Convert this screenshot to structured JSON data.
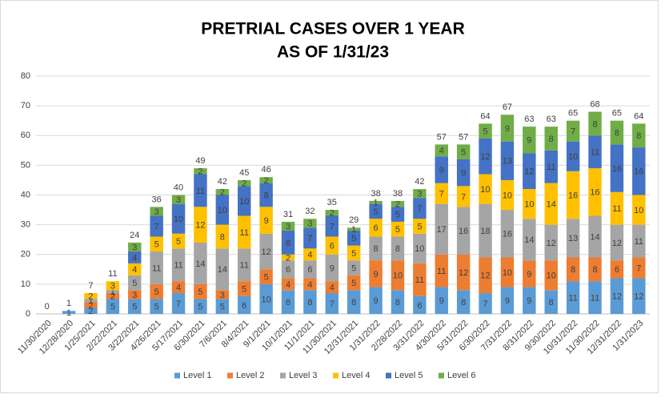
{
  "chart_data": {
    "type": "stacked_bar",
    "title": [
      "PRETRIAL CASES OVER 1 YEAR",
      "AS OF 1/31/23"
    ],
    "categories": [
      "11/30/2020",
      "12/28/2020",
      "1/25/2021",
      "2/22/2021",
      "3/22/2021",
      "4/26/2021",
      "5/17/2021",
      "6/30/2021",
      "7/6/2021",
      "8/4/2021",
      "9/1/2021",
      "10/1/2021",
      "11/1/2021",
      "11/30/2021",
      "12/31/2021",
      "1/31/2022",
      "2/28/2022",
      "3/31/2022",
      "4/30/2022",
      "5/31/2022",
      "6/30/2022",
      "7/31/2022",
      "8/31/2022",
      "9/30/2022",
      "10/31/2022",
      "11/30/2022",
      "12/31/2022",
      "1/31/2023"
    ],
    "series": [
      {
        "name": "Level 1",
        "color": "#5b9bd5",
        "values": [
          null,
          1,
          2,
          5,
          5,
          5,
          7,
          5,
          5,
          6,
          10,
          8,
          8,
          7,
          8,
          9,
          8,
          6,
          9,
          8,
          7,
          9,
          9,
          8,
          11,
          11,
          12,
          12
        ]
      },
      {
        "name": "Level 2",
        "color": "#ed7d31",
        "values": [
          null,
          null,
          2,
          2,
          3,
          5,
          4,
          5,
          3,
          5,
          5,
          4,
          4,
          4,
          5,
          9,
          10,
          11,
          11,
          12,
          12,
          10,
          9,
          10,
          8,
          8,
          6,
          7
        ]
      },
      {
        "name": "Level 3",
        "color": "#a5a5a5",
        "values": [
          null,
          null,
          1,
          1,
          5,
          11,
          11,
          14,
          14,
          11,
          12,
          6,
          6,
          9,
          5,
          8,
          8,
          10,
          17,
          16,
          18,
          16,
          14,
          12,
          13,
          14,
          12,
          11
        ]
      },
      {
        "name": "Level 4",
        "color": "#ffc000",
        "values": [
          null,
          null,
          2,
          3,
          4,
          5,
          5,
          12,
          8,
          11,
          9,
          2,
          4,
          6,
          5,
          6,
          5,
          5,
          7,
          7,
          10,
          10,
          10,
          14,
          16,
          16,
          11,
          10
        ]
      },
      {
        "name": "Level 5",
        "color": "#4472c4",
        "values": [
          null,
          null,
          null,
          null,
          4,
          7,
          10,
          11,
          10,
          10,
          8,
          8,
          7,
          7,
          5,
          5,
          5,
          7,
          9,
          9,
          12,
          13,
          12,
          11,
          10,
          11,
          16,
          16
        ]
      },
      {
        "name": "Level 6",
        "color": "#70ad47",
        "values": [
          null,
          null,
          null,
          null,
          3,
          3,
          3,
          2,
          2,
          2,
          2,
          3,
          3,
          2,
          1,
          1,
          2,
          3,
          4,
          5,
          5,
          9,
          9,
          8,
          7,
          8,
          8,
          8
        ]
      }
    ],
    "totals": [
      0,
      1,
      7,
      11,
      24,
      36,
      40,
      49,
      42,
      45,
      46,
      31,
      32,
      35,
      29,
      38,
      38,
      42,
      57,
      57,
      64,
      67,
      63,
      63,
      65,
      68,
      65,
      64
    ],
    "ylim": [
      0,
      80
    ],
    "yticks": [
      0,
      10,
      20,
      30,
      40,
      50,
      60,
      70,
      80
    ],
    "grid": true,
    "legend": "bottom"
  }
}
